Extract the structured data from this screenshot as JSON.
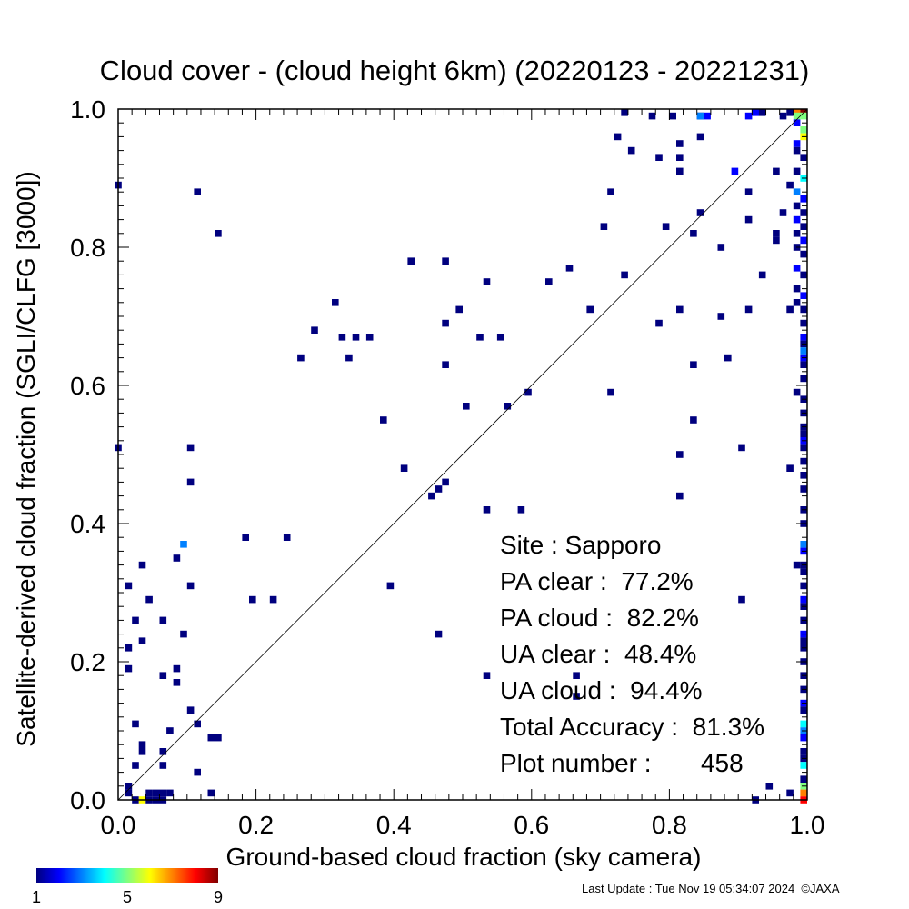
{
  "chart_data": {
    "type": "heatmap",
    "title": "Cloud cover - (cloud height 6km)  (20220123 - 20221231)",
    "xlabel": "Ground-based cloud fraction (sky camera)",
    "ylabel": "Satellite-derived cloud fraction (SGLI/CLFG [3000])",
    "xlim": [
      0.0,
      1.0
    ],
    "ylim": [
      0.0,
      1.0
    ],
    "x_ticks": [
      "0.0",
      "0.2",
      "0.4",
      "0.6",
      "0.8",
      "1.0"
    ],
    "y_ticks": [
      "0.0",
      "0.2",
      "0.4",
      "0.6",
      "0.8",
      "1.0"
    ],
    "reference_line": "1:1 diagonal",
    "colorbar": {
      "min": 1,
      "max": 9,
      "tick_labels": [
        "1",
        "5",
        "9"
      ]
    },
    "points": [
      [
        0.0,
        0.89,
        1
      ],
      [
        0.115,
        0.88,
        1
      ],
      [
        0.145,
        0.82,
        1
      ],
      [
        0.0,
        0.51,
        1
      ],
      [
        0.105,
        0.51,
        1
      ],
      [
        0.105,
        0.46,
        1
      ],
      [
        0.095,
        0.37,
        3
      ],
      [
        0.085,
        0.35,
        1
      ],
      [
        0.035,
        0.34,
        1
      ],
      [
        0.015,
        0.31,
        1
      ],
      [
        0.105,
        0.31,
        1
      ],
      [
        0.045,
        0.29,
        1
      ],
      [
        0.025,
        0.26,
        1
      ],
      [
        0.065,
        0.26,
        1
      ],
      [
        0.095,
        0.24,
        1
      ],
      [
        0.035,
        0.23,
        1
      ],
      [
        0.015,
        0.22,
        1
      ],
      [
        0.015,
        0.19,
        1
      ],
      [
        0.085,
        0.19,
        1
      ],
      [
        0.065,
        0.18,
        1
      ],
      [
        0.085,
        0.17,
        1
      ],
      [
        0.105,
        0.13,
        1
      ],
      [
        0.025,
        0.11,
        1
      ],
      [
        0.115,
        0.11,
        1
      ],
      [
        0.075,
        0.1,
        1
      ],
      [
        0.035,
        0.08,
        1
      ],
      [
        0.035,
        0.07,
        1
      ],
      [
        0.135,
        0.09,
        1
      ],
      [
        0.145,
        0.09,
        1
      ],
      [
        0.065,
        0.07,
        1
      ],
      [
        0.025,
        0.05,
        1
      ],
      [
        0.065,
        0.05,
        1
      ],
      [
        0.115,
        0.04,
        1
      ],
      [
        0.015,
        0.02,
        1
      ],
      [
        0.015,
        0.01,
        1
      ],
      [
        0.025,
        0.0,
        1
      ],
      [
        0.035,
        0.0,
        6
      ],
      [
        0.045,
        0.0,
        1
      ],
      [
        0.045,
        0.01,
        1
      ],
      [
        0.055,
        0.01,
        1
      ],
      [
        0.065,
        0.01,
        1
      ],
      [
        0.075,
        0.01,
        1
      ],
      [
        0.055,
        0.0,
        1
      ],
      [
        0.065,
        0.0,
        1
      ],
      [
        0.135,
        0.01,
        1
      ],
      [
        0.185,
        0.38,
        1
      ],
      [
        0.245,
        0.38,
        1
      ],
      [
        0.195,
        0.29,
        1
      ],
      [
        0.225,
        0.29,
        1
      ],
      [
        0.265,
        0.64,
        1
      ],
      [
        0.285,
        0.68,
        1
      ],
      [
        0.315,
        0.72,
        1
      ],
      [
        0.325,
        0.67,
        1
      ],
      [
        0.345,
        0.67,
        1
      ],
      [
        0.365,
        0.67,
        1
      ],
      [
        0.335,
        0.64,
        1
      ],
      [
        0.385,
        0.55,
        1
      ],
      [
        0.395,
        0.31,
        1
      ],
      [
        0.415,
        0.48,
        1
      ],
      [
        0.425,
        0.78,
        1
      ],
      [
        0.475,
        0.78,
        1
      ],
      [
        0.475,
        0.69,
        1
      ],
      [
        0.495,
        0.71,
        1
      ],
      [
        0.475,
        0.63,
        1
      ],
      [
        0.505,
        0.57,
        1
      ],
      [
        0.525,
        0.67,
        1
      ],
      [
        0.555,
        0.67,
        1
      ],
      [
        0.535,
        0.75,
        1
      ],
      [
        0.565,
        0.57,
        1
      ],
      [
        0.455,
        0.44,
        1
      ],
      [
        0.465,
        0.45,
        1
      ],
      [
        0.475,
        0.46,
        1
      ],
      [
        0.465,
        0.24,
        1
      ],
      [
        0.535,
        0.42,
        1
      ],
      [
        0.585,
        0.42,
        1
      ],
      [
        0.535,
        0.18,
        1
      ],
      [
        0.595,
        0.59,
        1
      ],
      [
        0.625,
        0.75,
        1
      ],
      [
        0.655,
        0.77,
        1
      ],
      [
        0.685,
        0.71,
        1
      ],
      [
        0.665,
        0.18,
        1
      ],
      [
        0.665,
        0.15,
        1
      ],
      [
        0.705,
        0.83,
        1
      ],
      [
        0.715,
        0.88,
        1
      ],
      [
        0.715,
        0.59,
        1
      ],
      [
        0.725,
        0.96,
        1
      ],
      [
        0.735,
        0.76,
        1
      ],
      [
        0.735,
        1.0,
        1
      ],
      [
        0.745,
        0.94,
        1
      ],
      [
        0.775,
        0.99,
        1
      ],
      [
        0.785,
        0.93,
        1
      ],
      [
        0.785,
        0.69,
        1
      ],
      [
        0.795,
        0.83,
        1
      ],
      [
        0.805,
        0.99,
        1
      ],
      [
        0.815,
        0.95,
        1
      ],
      [
        0.815,
        0.93,
        1
      ],
      [
        0.815,
        0.91,
        1
      ],
      [
        0.815,
        0.71,
        1
      ],
      [
        0.815,
        0.5,
        1
      ],
      [
        0.815,
        0.44,
        1
      ],
      [
        0.835,
        0.82,
        1
      ],
      [
        0.835,
        0.63,
        1
      ],
      [
        0.835,
        0.55,
        1
      ],
      [
        0.845,
        0.99,
        1
      ],
      [
        0.845,
        0.96,
        1
      ],
      [
        0.845,
        0.85,
        1
      ],
      [
        0.845,
        0.99,
        3
      ],
      [
        0.855,
        0.99,
        2
      ],
      [
        0.875,
        0.8,
        1
      ],
      [
        0.875,
        0.7,
        1
      ],
      [
        0.885,
        0.64,
        1
      ],
      [
        0.895,
        0.91,
        2
      ],
      [
        0.905,
        0.51,
        1
      ],
      [
        0.905,
        0.29,
        1
      ],
      [
        0.915,
        0.88,
        1
      ],
      [
        0.915,
        0.84,
        1
      ],
      [
        0.915,
        0.71,
        1
      ],
      [
        0.915,
        0.99,
        2
      ],
      [
        0.925,
        1.0,
        2
      ],
      [
        0.935,
        1.0,
        1
      ],
      [
        0.935,
        0.76,
        1
      ],
      [
        0.945,
        0.02,
        1
      ],
      [
        0.925,
        0.0,
        1
      ],
      [
        0.955,
        0.91,
        1
      ],
      [
        0.955,
        0.82,
        1
      ],
      [
        0.955,
        0.81,
        1
      ],
      [
        0.965,
        0.85,
        1
      ],
      [
        0.965,
        0.99,
        1
      ],
      [
        0.975,
        1.0,
        1
      ],
      [
        0.975,
        0.89,
        1
      ],
      [
        0.975,
        0.71,
        1
      ],
      [
        0.975,
        0.48,
        1
      ],
      [
        0.975,
        0.01,
        1
      ],
      [
        0.985,
        1.0,
        7
      ],
      [
        0.995,
        1.0,
        9
      ],
      [
        0.985,
        0.99,
        5
      ],
      [
        0.995,
        0.99,
        5
      ],
      [
        0.985,
        0.98,
        2
      ],
      [
        0.995,
        0.97,
        5
      ],
      [
        0.995,
        0.96,
        6
      ],
      [
        0.985,
        0.95,
        2
      ],
      [
        0.985,
        0.94,
        1
      ],
      [
        0.995,
        0.93,
        1
      ],
      [
        0.985,
        0.91,
        1
      ],
      [
        0.995,
        0.9,
        4
      ],
      [
        0.985,
        0.88,
        3
      ],
      [
        0.995,
        0.87,
        2
      ],
      [
        0.985,
        0.86,
        1
      ],
      [
        0.995,
        0.85,
        1
      ],
      [
        0.985,
        0.84,
        2
      ],
      [
        0.995,
        0.83,
        1
      ],
      [
        0.985,
        0.82,
        1
      ],
      [
        0.995,
        0.81,
        2
      ],
      [
        0.985,
        0.8,
        1
      ],
      [
        0.995,
        0.79,
        1
      ],
      [
        0.985,
        0.77,
        2
      ],
      [
        0.995,
        0.76,
        1
      ],
      [
        0.985,
        0.74,
        1
      ],
      [
        0.995,
        0.73,
        2
      ],
      [
        0.985,
        0.72,
        1
      ],
      [
        0.995,
        0.71,
        1
      ],
      [
        0.995,
        0.69,
        1
      ],
      [
        0.995,
        0.67,
        2
      ],
      [
        0.995,
        0.66,
        1
      ],
      [
        0.995,
        0.65,
        3
      ],
      [
        0.995,
        0.64,
        2
      ],
      [
        0.995,
        0.63,
        1
      ],
      [
        0.995,
        0.61,
        1
      ],
      [
        0.985,
        0.59,
        1
      ],
      [
        0.995,
        0.58,
        1
      ],
      [
        0.995,
        0.56,
        1
      ],
      [
        0.995,
        0.54,
        1
      ],
      [
        0.995,
        0.53,
        1
      ],
      [
        0.995,
        0.52,
        2
      ],
      [
        0.995,
        0.51,
        1
      ],
      [
        0.995,
        0.49,
        1
      ],
      [
        0.995,
        0.47,
        1
      ],
      [
        0.995,
        0.45,
        1
      ],
      [
        0.995,
        0.42,
        1
      ],
      [
        0.995,
        0.4,
        1
      ],
      [
        0.995,
        0.37,
        3
      ],
      [
        0.995,
        0.36,
        2
      ],
      [
        0.985,
        0.34,
        1
      ],
      [
        0.995,
        0.34,
        1
      ],
      [
        0.995,
        0.33,
        1
      ],
      [
        0.995,
        0.31,
        1
      ],
      [
        0.995,
        0.29,
        2
      ],
      [
        0.995,
        0.28,
        1
      ],
      [
        0.995,
        0.26,
        1
      ],
      [
        0.995,
        0.24,
        2
      ],
      [
        0.995,
        0.23,
        1
      ],
      [
        0.995,
        0.22,
        1
      ],
      [
        0.995,
        0.2,
        1
      ],
      [
        0.995,
        0.18,
        1
      ],
      [
        0.995,
        0.16,
        1
      ],
      [
        0.995,
        0.14,
        2
      ],
      [
        0.995,
        0.13,
        1
      ],
      [
        0.995,
        0.11,
        4
      ],
      [
        0.995,
        0.1,
        3
      ],
      [
        0.995,
        0.09,
        2
      ],
      [
        0.995,
        0.07,
        1
      ],
      [
        0.995,
        0.06,
        1
      ],
      [
        0.995,
        0.05,
        4
      ],
      [
        0.995,
        0.03,
        1
      ],
      [
        0.995,
        0.02,
        5
      ],
      [
        0.995,
        0.01,
        7
      ],
      [
        0.995,
        0.0,
        8
      ]
    ]
  },
  "stats": {
    "site": "Site : Sapporo",
    "pa_clear": "PA clear :  77.2%",
    "pa_cloud": "PA cloud :  82.2%",
    "ua_clear": "UA clear :  48.4%",
    "ua_cloud": "UA cloud :  94.4%",
    "total_accuracy": "Total Accuracy :  81.3%",
    "plot_number": "Plot number :       458"
  },
  "footer": "Last Update : Tue Nov 19 05:34:07 2024  ©JAXA"
}
